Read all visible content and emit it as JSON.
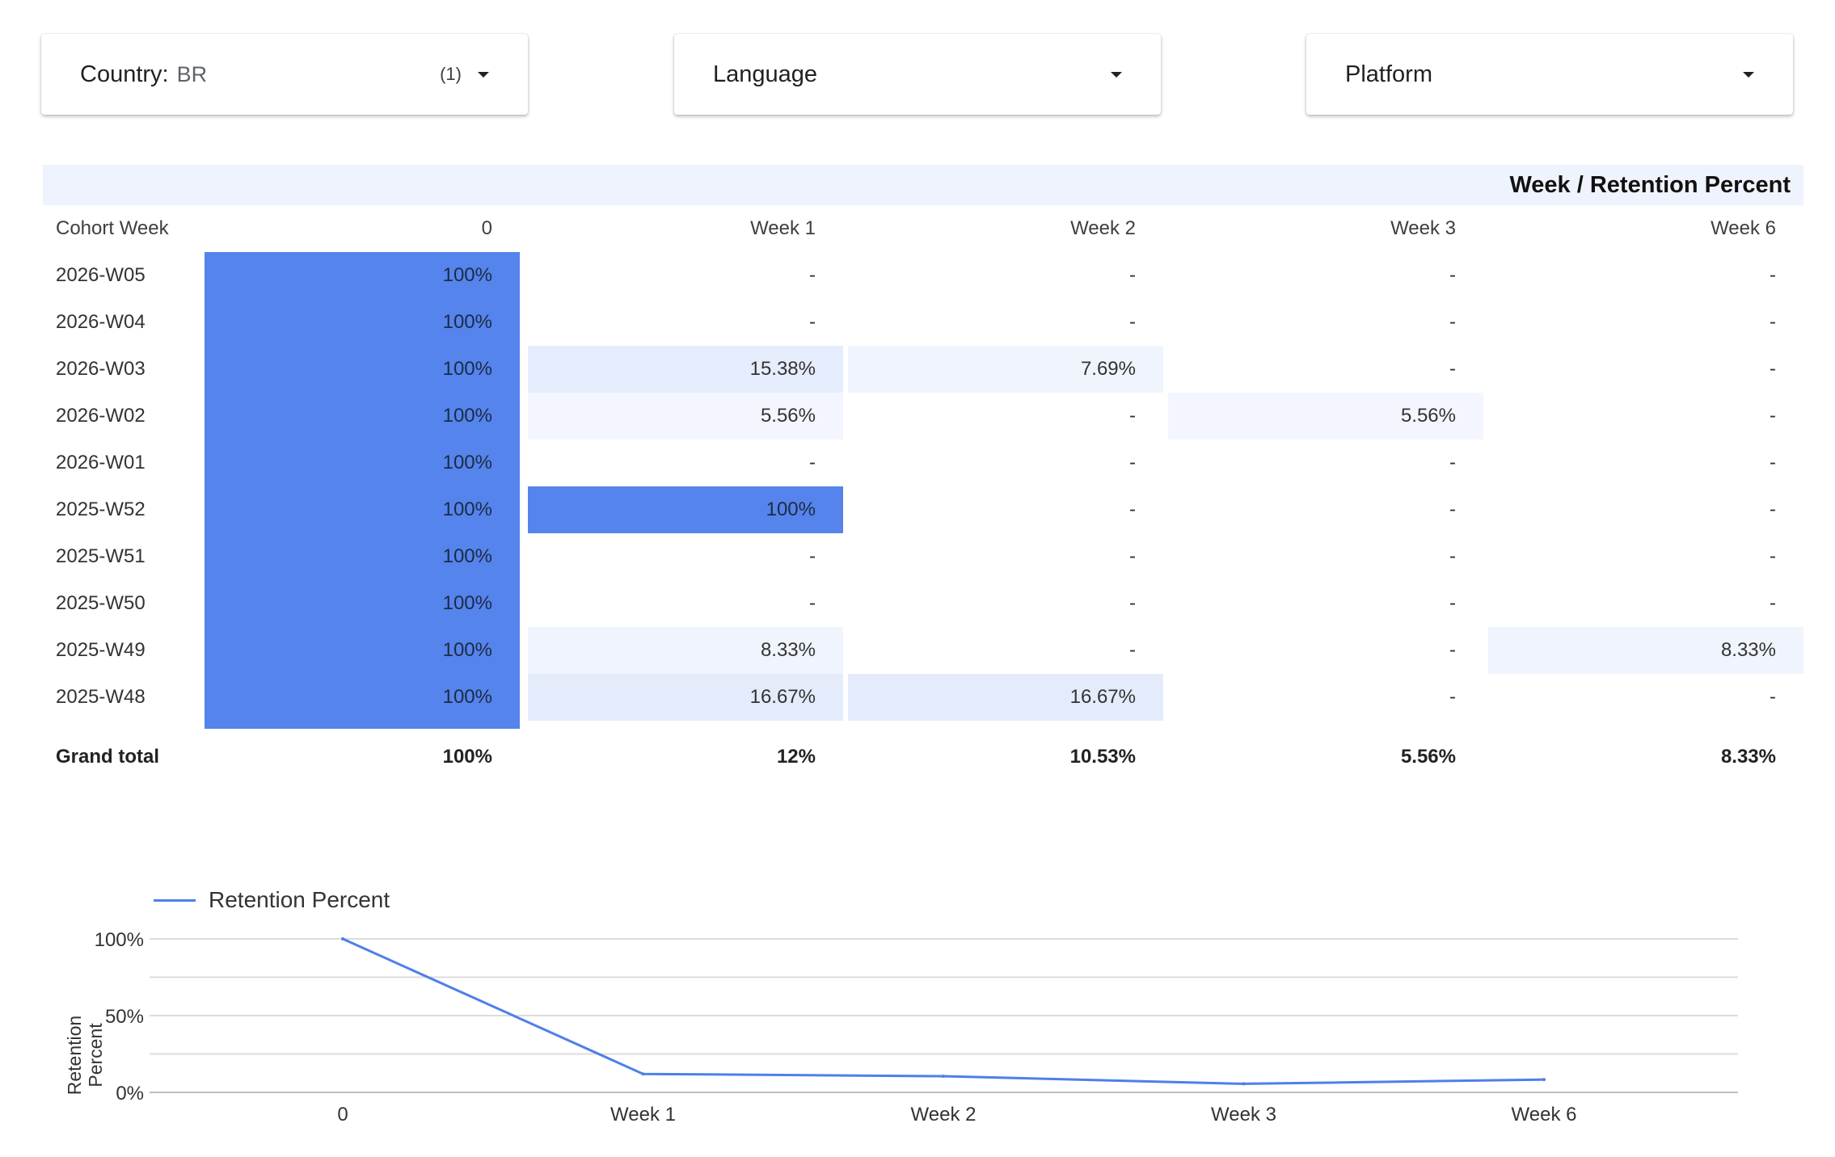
{
  "filters": [
    {
      "label": "Country",
      "separator": ":",
      "value": "BR",
      "count": "(1)"
    },
    {
      "label": "Language",
      "value": "",
      "count": ""
    },
    {
      "label": "Platform",
      "value": "",
      "count": ""
    }
  ],
  "pivot": {
    "title": "Week / Retention Percent",
    "row_header": "Cohort Week",
    "columns": [
      "0",
      "Week 1",
      "Week 2",
      "Week 3",
      "Week 6"
    ],
    "rows": [
      {
        "cohort": "2026-W05",
        "values": [
          "100%",
          "-",
          "-",
          "-",
          "-"
        ]
      },
      {
        "cohort": "2026-W04",
        "values": [
          "100%",
          "-",
          "-",
          "-",
          "-"
        ]
      },
      {
        "cohort": "2026-W03",
        "values": [
          "100%",
          "15.38%",
          "7.69%",
          "-",
          "-"
        ]
      },
      {
        "cohort": "2026-W02",
        "values": [
          "100%",
          "5.56%",
          "-",
          "5.56%",
          "-"
        ]
      },
      {
        "cohort": "2026-W01",
        "values": [
          "100%",
          "-",
          "-",
          "-",
          "-"
        ]
      },
      {
        "cohort": "2025-W52",
        "values": [
          "100%",
          "100%",
          "-",
          "-",
          "-"
        ]
      },
      {
        "cohort": "2025-W51",
        "values": [
          "100%",
          "-",
          "-",
          "-",
          "-"
        ]
      },
      {
        "cohort": "2025-W50",
        "values": [
          "100%",
          "-",
          "-",
          "-",
          "-"
        ]
      },
      {
        "cohort": "2025-W49",
        "values": [
          "100%",
          "8.33%",
          "-",
          "-",
          "8.33%"
        ]
      },
      {
        "cohort": "2025-W48",
        "values": [
          "100%",
          "16.67%",
          "16.67%",
          "-",
          "-"
        ]
      }
    ],
    "total_label": "Grand total",
    "totals": [
      "100%",
      "12%",
      "10.53%",
      "5.56%",
      "8.33%"
    ],
    "heat_color": "#5484ec"
  },
  "chart_data": {
    "type": "line",
    "categories": [
      "0",
      "Week 1",
      "Week 2",
      "Week 3",
      "Week 6"
    ],
    "series": [
      {
        "name": "Retention Percent",
        "values": [
          100,
          12,
          10.53,
          5.56,
          8.33
        ],
        "color": "#4f7fe8"
      }
    ],
    "ylabel": "Retention Percent",
    "yticks": [
      "100%",
      "50%",
      "0%"
    ],
    "ylim": [
      0,
      100
    ],
    "grid": true,
    "legend": "top-left"
  }
}
